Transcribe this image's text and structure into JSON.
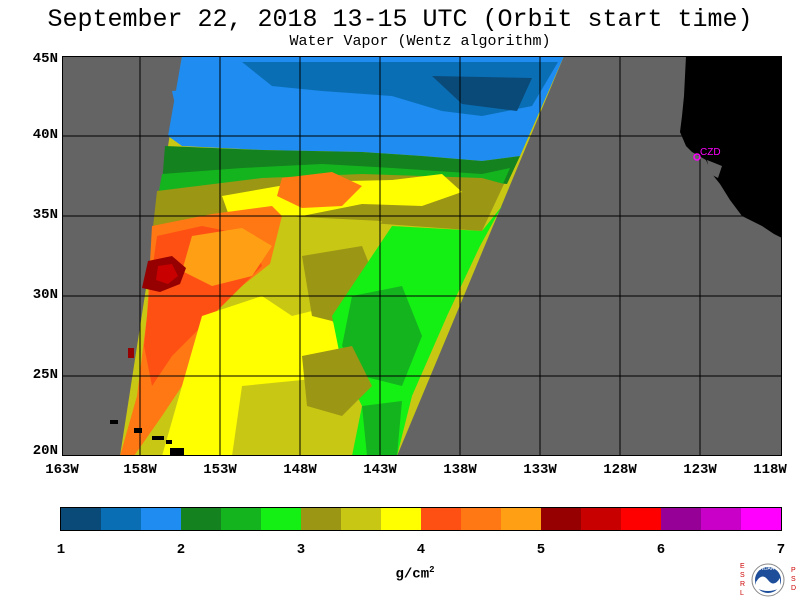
{
  "header": {
    "title": "September 22, 2018  13-15 UTC  (Orbit start time)",
    "subtitle": "Water Vapor (Wentz algorithm)"
  },
  "map": {
    "lat_labels": [
      "45N",
      "40N",
      "35N",
      "30N",
      "25N",
      "20N"
    ],
    "lon_labels": [
      "163W",
      "158W",
      "153W",
      "148W",
      "143W",
      "138W",
      "133W",
      "128W",
      "123W",
      "118W"
    ],
    "station_label": "CZD",
    "colors": {
      "no_data": "#646464",
      "land": "#000000",
      "grid": "#000000",
      "station": "#ff00ff"
    }
  },
  "colorbar": {
    "tick_labels": [
      "1",
      "2",
      "3",
      "4",
      "5",
      "6",
      "7"
    ],
    "unit_main": "g/cm",
    "unit_sup": "2",
    "colors": [
      "#0a4a78",
      "#0a6eb4",
      "#1e8cf0",
      "#14821e",
      "#14b41e",
      "#14f014",
      "#9b9614",
      "#c8c814",
      "#ffff00",
      "#ff5014",
      "#ff7814",
      "#ffa014",
      "#960000",
      "#c80000",
      "#ff0000",
      "#960096",
      "#c800c8",
      "#ff00ff"
    ]
  },
  "logo": {
    "left_letters": [
      "E",
      "S",
      "R",
      "L"
    ],
    "right_letters": [
      "P",
      "S",
      "D"
    ],
    "center_text": "NOAA"
  }
}
